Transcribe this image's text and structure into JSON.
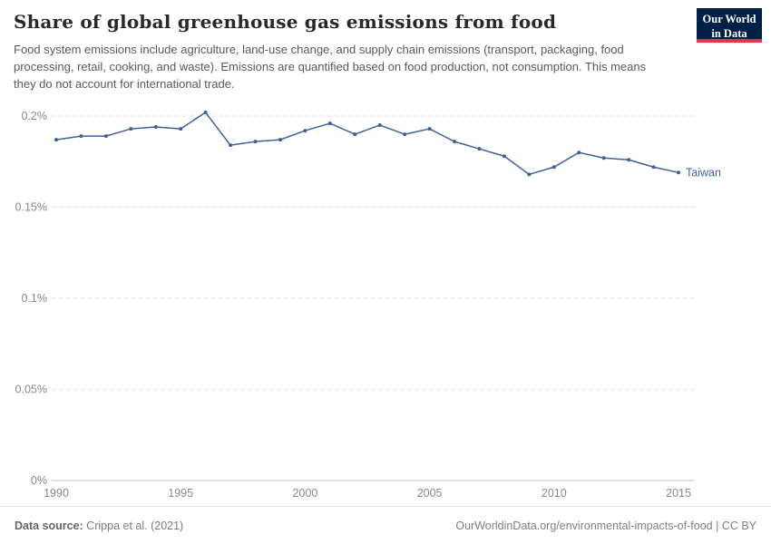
{
  "header": {
    "title": "Share of global greenhouse gas emissions from food",
    "subtitle": "Food system emissions include agriculture, land-use change, and supply chain emissions (transport, packaging, food processing, retail, cooking, and waste). Emissions are quantified based on food production, not consumption. This means they do not account for international trade.",
    "logo": {
      "line1": "Our World",
      "line2": "in Data",
      "bg_color": "#002147",
      "accent_color": "#d93a4a"
    }
  },
  "chart_data": {
    "type": "line",
    "title": "Share of global greenhouse gas emissions from food",
    "xlabel": "",
    "ylabel": "",
    "grid": "dashed-horizontal",
    "legend_position": "end-of-line-label",
    "x_domain": [
      1990,
      2015
    ],
    "ylim": [
      0,
      0.21
    ],
    "x_ticks": [
      1990,
      1995,
      2000,
      2005,
      2010,
      2015
    ],
    "y_ticks": [
      {
        "value": 0,
        "label": "0%"
      },
      {
        "value": 0.05,
        "label": "0.05%"
      },
      {
        "value": 0.1,
        "label": "0.1%"
      },
      {
        "value": 0.15,
        "label": "0.15%"
      },
      {
        "value": 0.2,
        "label": "0.2%"
      }
    ],
    "series": [
      {
        "name": "Taiwan",
        "color": "#41609b",
        "x": [
          1990,
          1991,
          1992,
          1993,
          1994,
          1995,
          1996,
          1997,
          1998,
          1999,
          2000,
          2001,
          2002,
          2003,
          2004,
          2005,
          2006,
          2007,
          2008,
          2009,
          2010,
          2011,
          2012,
          2013,
          2014,
          2015
        ],
        "values": [
          0.187,
          0.189,
          0.189,
          0.193,
          0.194,
          0.193,
          0.202,
          0.184,
          0.186,
          0.187,
          0.192,
          0.196,
          0.19,
          0.195,
          0.19,
          0.193,
          0.186,
          0.182,
          0.178,
          0.168,
          0.172,
          0.18,
          0.177,
          0.176,
          0.172,
          0.169
        ]
      }
    ],
    "colors": {
      "gridline": "#dcdcdc",
      "axis_line": "#c4c4c4",
      "tick_label": "#878b90"
    }
  },
  "footer": {
    "source_label": "Data source:",
    "source_value": "Crippa et al. (2021)",
    "credit": "OurWorldinData.org/environmental-impacts-of-food | CC BY"
  }
}
